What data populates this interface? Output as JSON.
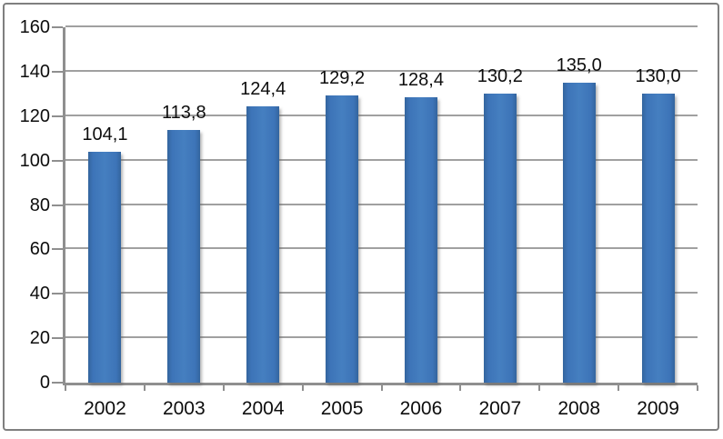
{
  "chart_data": {
    "type": "bar",
    "title": "",
    "xlabel": "",
    "ylabel": "",
    "categories": [
      "2002",
      "2003",
      "2004",
      "2005",
      "2006",
      "2007",
      "2008",
      "2009"
    ],
    "values": [
      104.1,
      113.8,
      124.4,
      129.2,
      128.4,
      130.2,
      135.0,
      130.0
    ],
    "value_labels": [
      "104,1",
      "113,8",
      "124,4",
      "129,2",
      "128,4",
      "130,2",
      "135,0",
      "130,0"
    ],
    "decimal_separator": ",",
    "ylim": [
      0,
      160
    ],
    "yticks": [
      0,
      20,
      40,
      60,
      80,
      100,
      120,
      140,
      160
    ],
    "ytick_labels": [
      "0",
      "20",
      "40",
      "60",
      "80",
      "100",
      "120",
      "140",
      "160"
    ],
    "grid": true,
    "legend": false,
    "data_labels": true,
    "colors": {
      "bar_center": "#457fc0",
      "bar_mid": "#3d74b8",
      "bar_edge": "#33659e",
      "gridline": "#a0a0a0",
      "axis": "#8f8f8f",
      "text": "#0d0d0d",
      "frame_border": "#7f7f7f",
      "background": "#ffffff"
    }
  }
}
